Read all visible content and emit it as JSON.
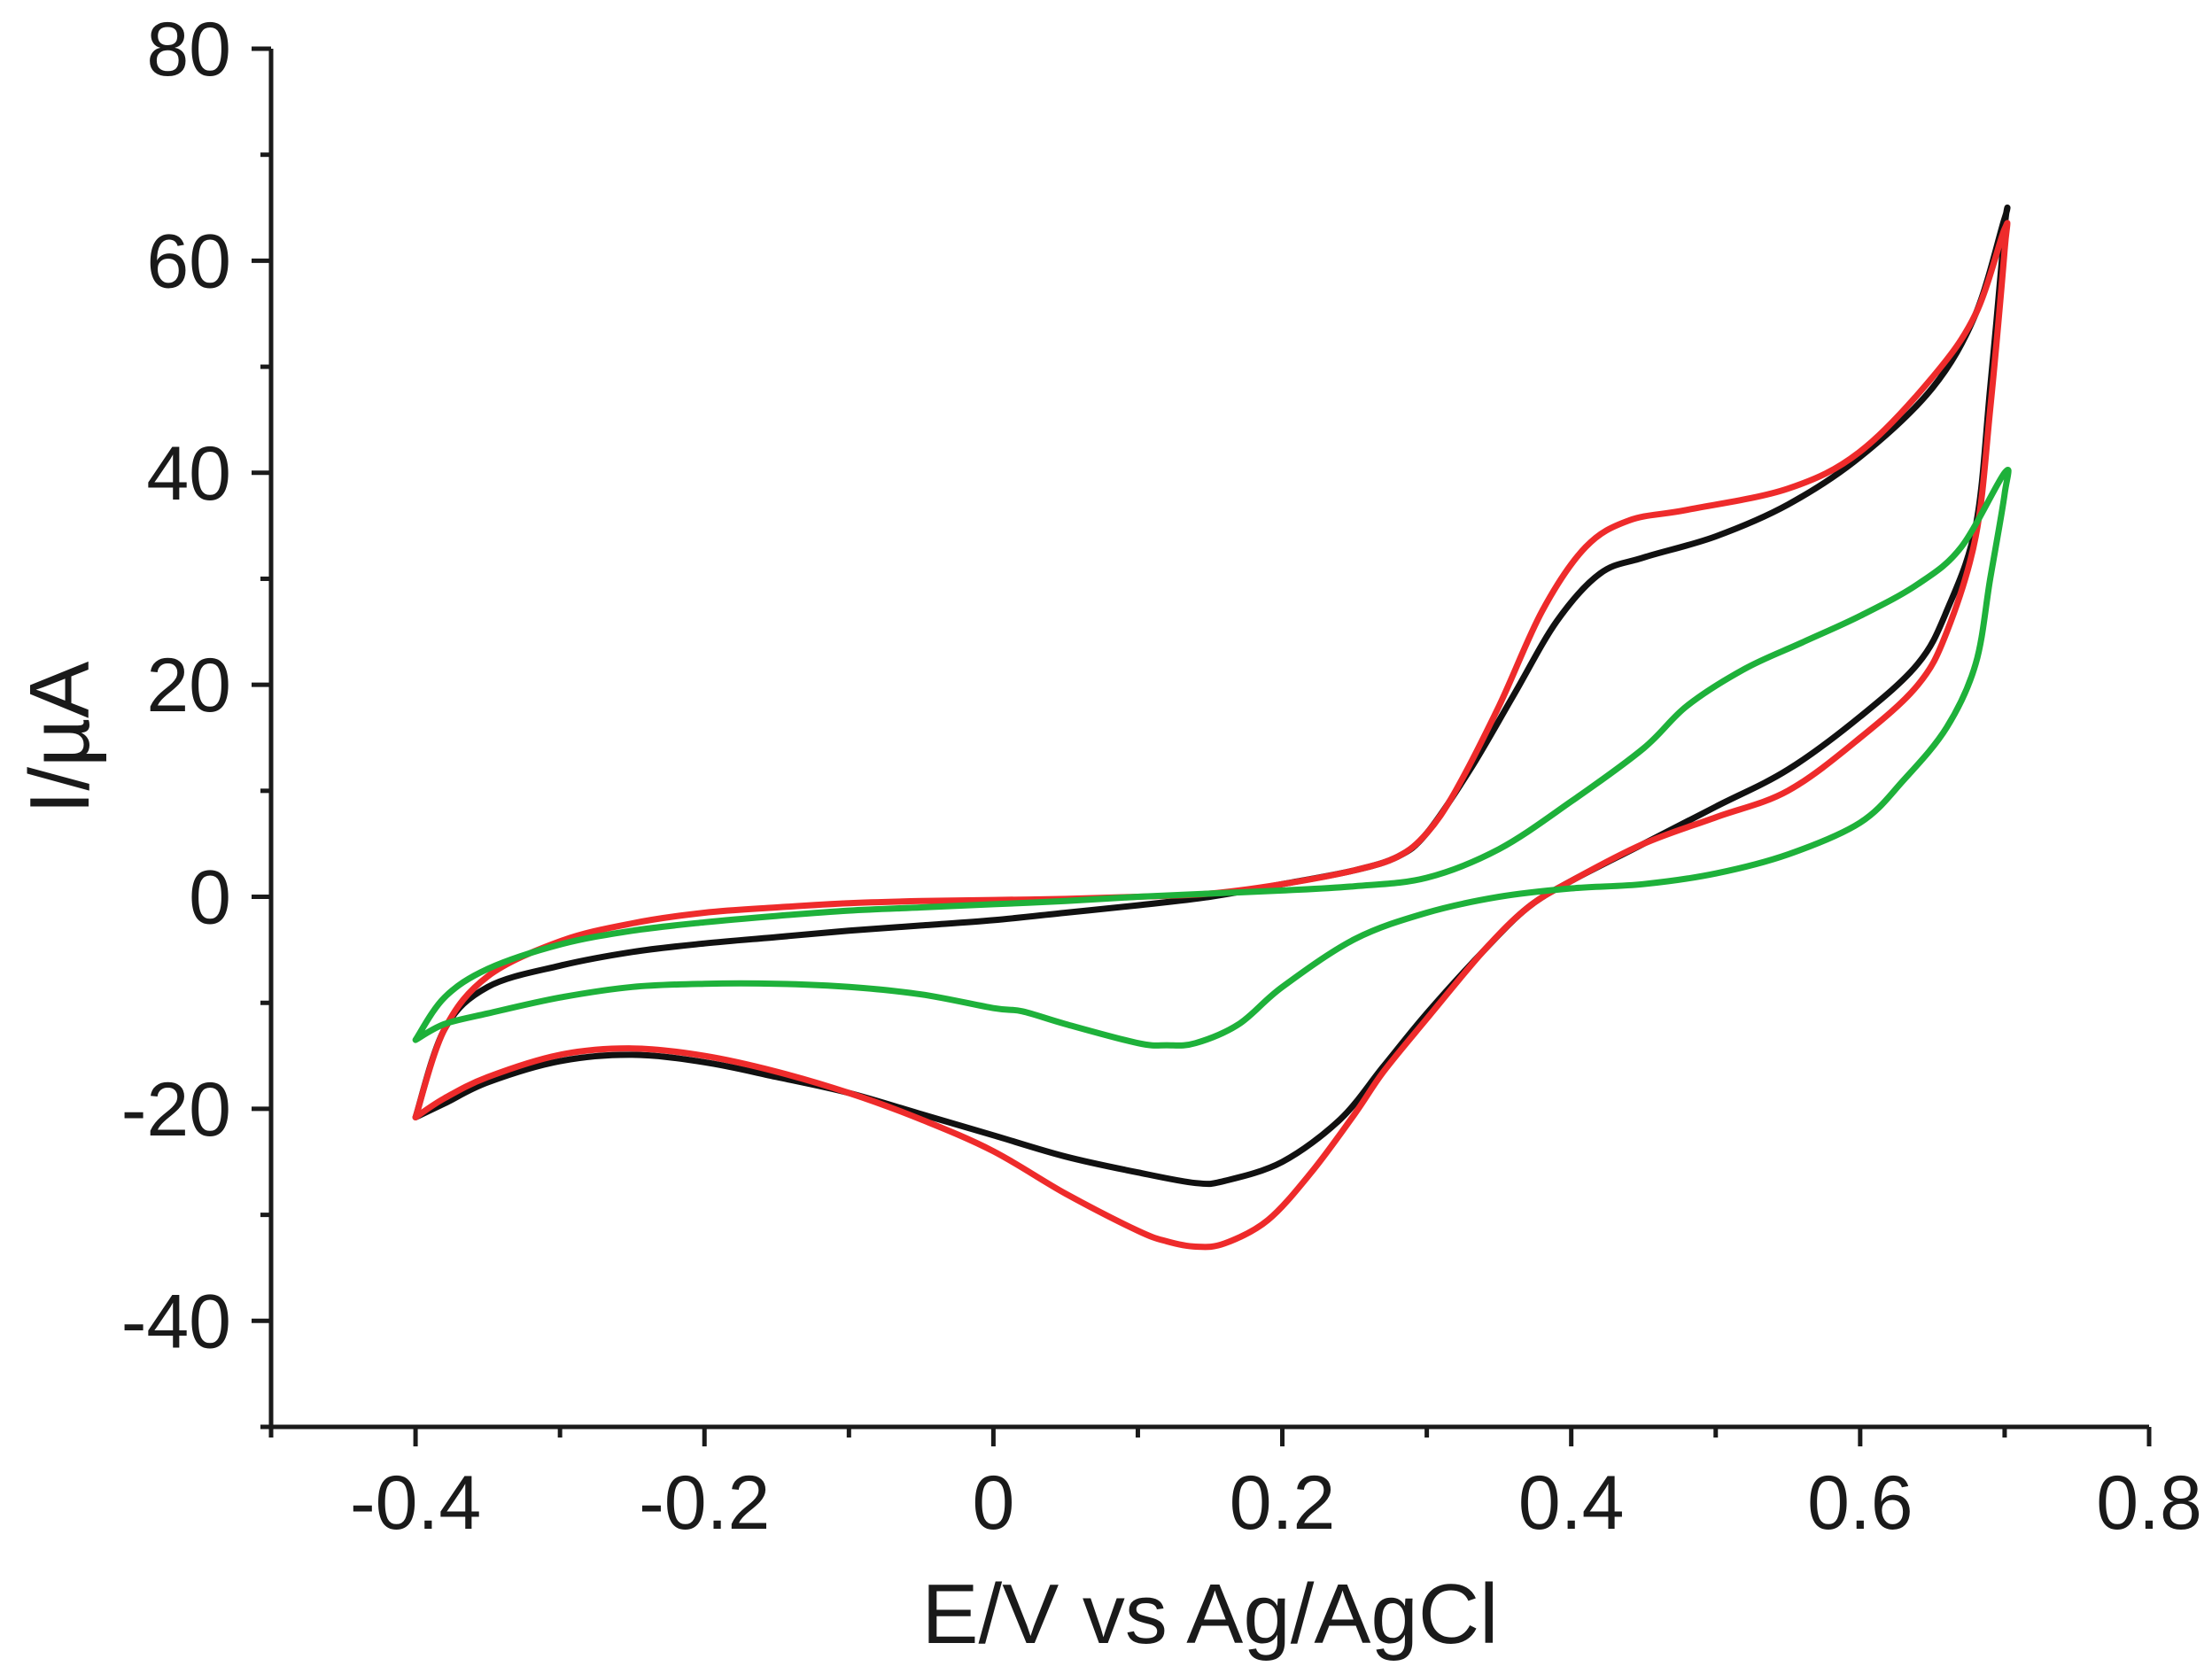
{
  "chart_data": {
    "type": "line",
    "title": "",
    "xlabel": "E/V vs Ag/AgCl",
    "ylabel": "I/µA",
    "xlim": [
      -0.5,
      0.8
    ],
    "ylim": [
      -50,
      80
    ],
    "xticks": [
      -0.4,
      -0.2,
      0,
      0.2,
      0.4,
      0.6,
      0.8
    ],
    "xtick_labels": [
      "-0.4",
      "-0.2",
      "0",
      "0.2",
      "0.4",
      "0.6",
      "0.8"
    ],
    "yticks": [
      -40,
      -20,
      0,
      20,
      40,
      60,
      80
    ],
    "ytick_labels": [
      "-40",
      "-20",
      "0",
      "20",
      "40",
      "60",
      "80"
    ],
    "grid": false,
    "series": [
      {
        "name": "black",
        "color": "#111111",
        "x": [
          -0.4,
          -0.38,
          -0.35,
          -0.3,
          -0.25,
          -0.2,
          -0.15,
          -0.1,
          -0.05,
          0,
          0.05,
          0.1,
          0.15,
          0.2,
          0.25,
          0.28,
          0.3,
          0.33,
          0.36,
          0.39,
          0.42,
          0.45,
          0.5,
          0.55,
          0.6,
          0.65,
          0.68,
          0.7,
          0.7,
          0.69,
          0.68,
          0.66,
          0.64,
          0.6,
          0.55,
          0.5,
          0.45,
          0.4,
          0.37,
          0.34,
          0.3,
          0.27,
          0.24,
          0.2,
          0.16,
          0.14,
          0.1,
          0.05,
          0,
          -0.05,
          -0.1,
          -0.15,
          -0.2,
          -0.25,
          -0.3,
          -0.35,
          -0.38,
          -0.4
        ],
        "y": [
          -20.8,
          -12.5,
          -8.5,
          -6.5,
          -5.2,
          -4.4,
          -3.8,
          -3.2,
          -2.7,
          -2.2,
          -1.5,
          -0.8,
          0,
          1.2,
          2.5,
          3.8,
          6,
          12,
          19,
          26,
          30.5,
          32,
          34,
          37,
          41.5,
          48,
          55,
          64,
          63,
          48,
          35,
          27,
          22,
          17,
          12,
          8.5,
          5,
          1.5,
          -1,
          -5,
          -11,
          -16,
          -21,
          -25,
          -26.8,
          -27,
          -26,
          -24.5,
          -22.5,
          -20.5,
          -18.5,
          -17,
          -15.6,
          -14.9,
          -15.5,
          -17.5,
          -19.5,
          -20.8
        ]
      },
      {
        "name": "red",
        "color": "#ee2b2b",
        "x": [
          -0.4,
          -0.38,
          -0.35,
          -0.3,
          -0.25,
          -0.2,
          -0.15,
          -0.1,
          -0.05,
          0,
          0.05,
          0.1,
          0.15,
          0.2,
          0.25,
          0.28,
          0.3,
          0.32,
          0.35,
          0.38,
          0.41,
          0.44,
          0.48,
          0.55,
          0.6,
          0.65,
          0.68,
          0.7,
          0.7,
          0.69,
          0.68,
          0.66,
          0.64,
          0.6,
          0.55,
          0.5,
          0.45,
          0.4,
          0.37,
          0.34,
          0.3,
          0.27,
          0.25,
          0.22,
          0.19,
          0.16,
          0.14,
          0.12,
          0.1,
          0.05,
          0,
          -0.05,
          -0.1,
          -0.15,
          -0.2,
          -0.25,
          -0.3,
          -0.35,
          -0.38,
          -0.4
        ],
        "y": [
          -20.8,
          -12.5,
          -7.5,
          -4.2,
          -2.5,
          -1.5,
          -1,
          -0.6,
          -0.4,
          -0.3,
          -0.2,
          0,
          0.3,
          1.2,
          2.5,
          3.8,
          6,
          10,
          18,
          27,
          33,
          35.5,
          36.5,
          38.5,
          42,
          49,
          55,
          63,
          61,
          46,
          34,
          25,
          20,
          15,
          10,
          7.5,
          5,
          1.5,
          -1,
          -5,
          -11.5,
          -16.5,
          -20.5,
          -26,
          -30.5,
          -32.7,
          -33,
          -32.5,
          -31.5,
          -28,
          -24,
          -21,
          -18.5,
          -16.5,
          -15,
          -14.3,
          -14.9,
          -17,
          -19,
          -20.8
        ]
      },
      {
        "name": "green",
        "color": "#1eb13a",
        "x": [
          -0.4,
          -0.38,
          -0.35,
          -0.3,
          -0.25,
          -0.2,
          -0.15,
          -0.1,
          -0.05,
          0,
          0.05,
          0.1,
          0.15,
          0.2,
          0.25,
          0.3,
          0.35,
          0.4,
          0.45,
          0.48,
          0.52,
          0.56,
          0.6,
          0.64,
          0.67,
          0.7,
          0.7,
          0.69,
          0.68,
          0.66,
          0.63,
          0.6,
          0.55,
          0.5,
          0.45,
          0.4,
          0.35,
          0.3,
          0.25,
          0.2,
          0.17,
          0.14,
          0.12,
          0.1,
          0.05,
          0.02,
          0,
          -0.05,
          -0.1,
          -0.15,
          -0.2,
          -0.25,
          -0.3,
          -0.35,
          -0.38,
          -0.4
        ],
        "y": [
          -13.5,
          -9.5,
          -6.8,
          -4.5,
          -3.2,
          -2.4,
          -1.8,
          -1.3,
          -1,
          -0.7,
          -0.4,
          0,
          0.3,
          0.6,
          1,
          1.8,
          4.5,
          9,
          14,
          18,
          21.5,
          24,
          26.5,
          29.5,
          33,
          40,
          38,
          30,
          22,
          16,
          11,
          7,
          4,
          2.2,
          1.2,
          0.8,
          0,
          -1.5,
          -4,
          -8.5,
          -12,
          -13.8,
          -14,
          -13.8,
          -12,
          -10.8,
          -10.5,
          -9.2,
          -8.5,
          -8.2,
          -8.2,
          -8.5,
          -9.5,
          -11,
          -12,
          -13.5
        ]
      }
    ]
  }
}
